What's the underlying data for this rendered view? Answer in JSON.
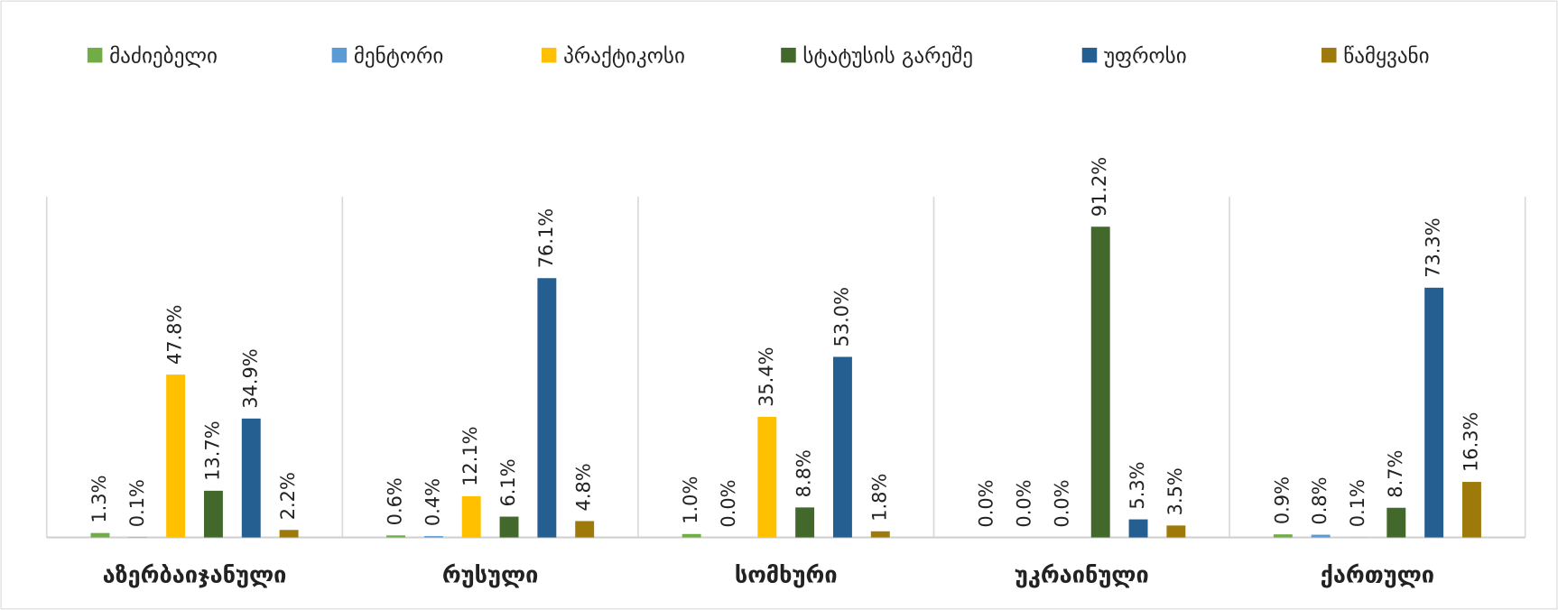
{
  "chart_data": {
    "type": "bar",
    "categories": [
      "აზერბაიჯანული",
      "რუსული",
      "სომხური",
      "უკრაინული",
      "ქართული"
    ],
    "series": [
      {
        "name": "მაძიებელი",
        "color": "#70ad47",
        "values": [
          1.3,
          0.6,
          1.0,
          0.0,
          0.9
        ],
        "value_labels": [
          "1.3%",
          "0.6%",
          "1.0%",
          "0.0%",
          "0.9%"
        ]
      },
      {
        "name": "მენტორი",
        "color": "#5b9bd5",
        "values": [
          0.1,
          0.4,
          0.0,
          0.0,
          0.8
        ],
        "value_labels": [
          "0.1%",
          "0.4%",
          "0.0%",
          "0.0%",
          "0.8%"
        ]
      },
      {
        "name": "პრაქტიკოსი",
        "color": "#ffc000",
        "values": [
          47.8,
          12.1,
          35.4,
          0.0,
          0.1
        ],
        "value_labels": [
          "47.8%",
          "12.1%",
          "35.4%",
          "0.0%",
          "0.1%"
        ]
      },
      {
        "name": "სტატუსის გარეშე",
        "color": "#43682b",
        "values": [
          13.7,
          6.1,
          8.8,
          91.2,
          8.7
        ],
        "value_labels": [
          "13.7%",
          "6.1%",
          "8.8%",
          "91.2%",
          "8.7%"
        ]
      },
      {
        "name": "უფროსი",
        "color": "#255e91",
        "values": [
          34.9,
          76.1,
          53.0,
          5.3,
          73.3
        ],
        "value_labels": [
          "34.9%",
          "76.1%",
          "53.0%",
          "5.3%",
          "73.3%"
        ]
      },
      {
        "name": "წამყვანი",
        "color": "#9e7a0b",
        "values": [
          2.2,
          4.8,
          1.8,
          3.5,
          16.3
        ],
        "value_labels": [
          "2.2%",
          "4.8%",
          "1.8%",
          "3.5%",
          "16.3%"
        ]
      }
    ],
    "ylim": [
      0,
      100
    ],
    "legend": "top"
  }
}
